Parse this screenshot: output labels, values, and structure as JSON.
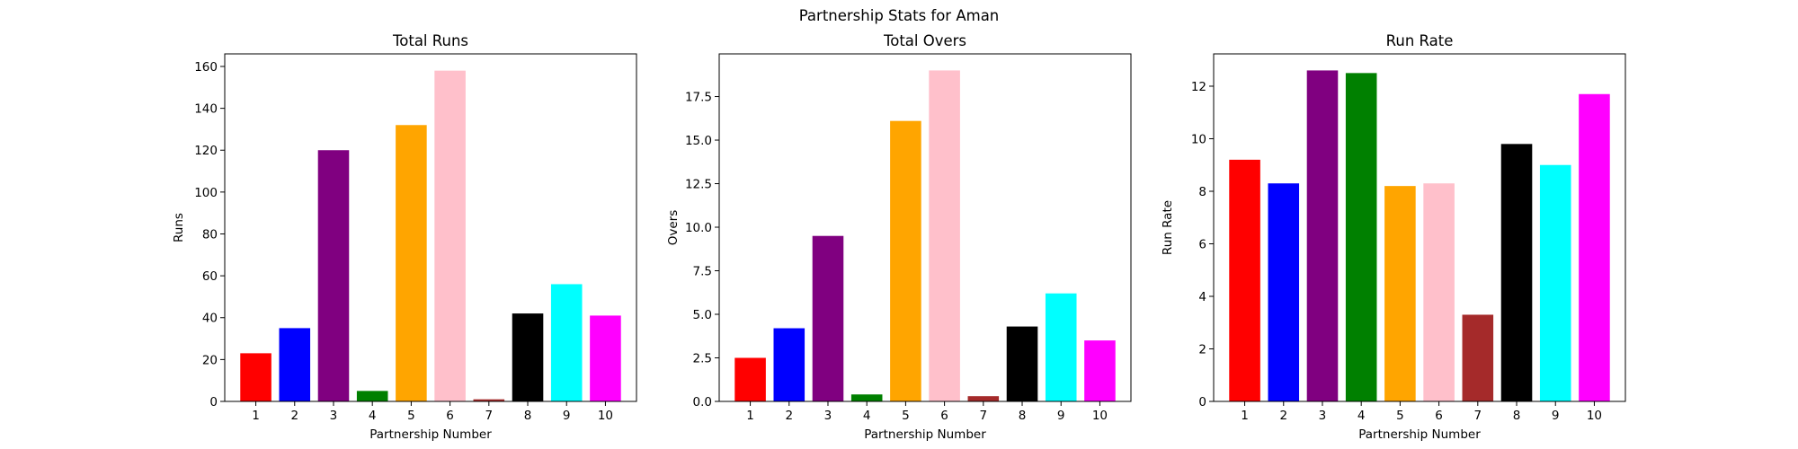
{
  "figure": {
    "suptitle": "Partnership Stats for Aman"
  },
  "colors": [
    "#ff0000",
    "#0000ff",
    "#800080",
    "#008000",
    "#ffa500",
    "#ffc0cb",
    "#a52a2a",
    "#000000",
    "#00ffff",
    "#ff00ff"
  ],
  "chart_data": [
    {
      "type": "bar",
      "title": "Total Runs",
      "xlabel": "Partnership Number",
      "ylabel": "Runs",
      "categories": [
        "1",
        "2",
        "3",
        "4",
        "5",
        "6",
        "7",
        "8",
        "9",
        "10"
      ],
      "values": [
        23,
        35,
        120,
        5,
        132,
        158,
        1,
        42,
        56,
        41
      ],
      "ylim": [
        0,
        166
      ],
      "yticks": [
        0,
        20,
        40,
        60,
        80,
        100,
        120,
        140,
        160
      ],
      "ytick_labels": [
        "0",
        "20",
        "40",
        "60",
        "80",
        "100",
        "120",
        "140",
        "160"
      ],
      "grid": false
    },
    {
      "type": "bar",
      "title": "Total Overs",
      "xlabel": "Partnership Number",
      "ylabel": "Overs",
      "categories": [
        "1",
        "2",
        "3",
        "4",
        "5",
        "6",
        "7",
        "8",
        "9",
        "10"
      ],
      "values": [
        2.5,
        4.2,
        9.5,
        0.4,
        16.1,
        19.0,
        0.3,
        4.3,
        6.2,
        3.5
      ],
      "ylim": [
        0,
        19.95
      ],
      "yticks": [
        0,
        2.5,
        5,
        7.5,
        10,
        12.5,
        15,
        17.5
      ],
      "ytick_labels": [
        "0.0",
        "2.5",
        "5.0",
        "7.5",
        "10.0",
        "12.5",
        "15.0",
        "17.5"
      ],
      "grid": false
    },
    {
      "type": "bar",
      "title": "Run Rate",
      "xlabel": "Partnership Number",
      "ylabel": "Run Rate",
      "categories": [
        "1",
        "2",
        "3",
        "4",
        "5",
        "6",
        "7",
        "8",
        "9",
        "10"
      ],
      "values": [
        9.2,
        8.3,
        12.6,
        12.5,
        8.2,
        8.3,
        3.3,
        9.8,
        9.0,
        11.7
      ],
      "ylim": [
        0,
        13.23
      ],
      "yticks": [
        0,
        2,
        4,
        6,
        8,
        10,
        12
      ],
      "ytick_labels": [
        "0",
        "2",
        "4",
        "6",
        "8",
        "10",
        "12"
      ],
      "grid": false
    }
  ]
}
